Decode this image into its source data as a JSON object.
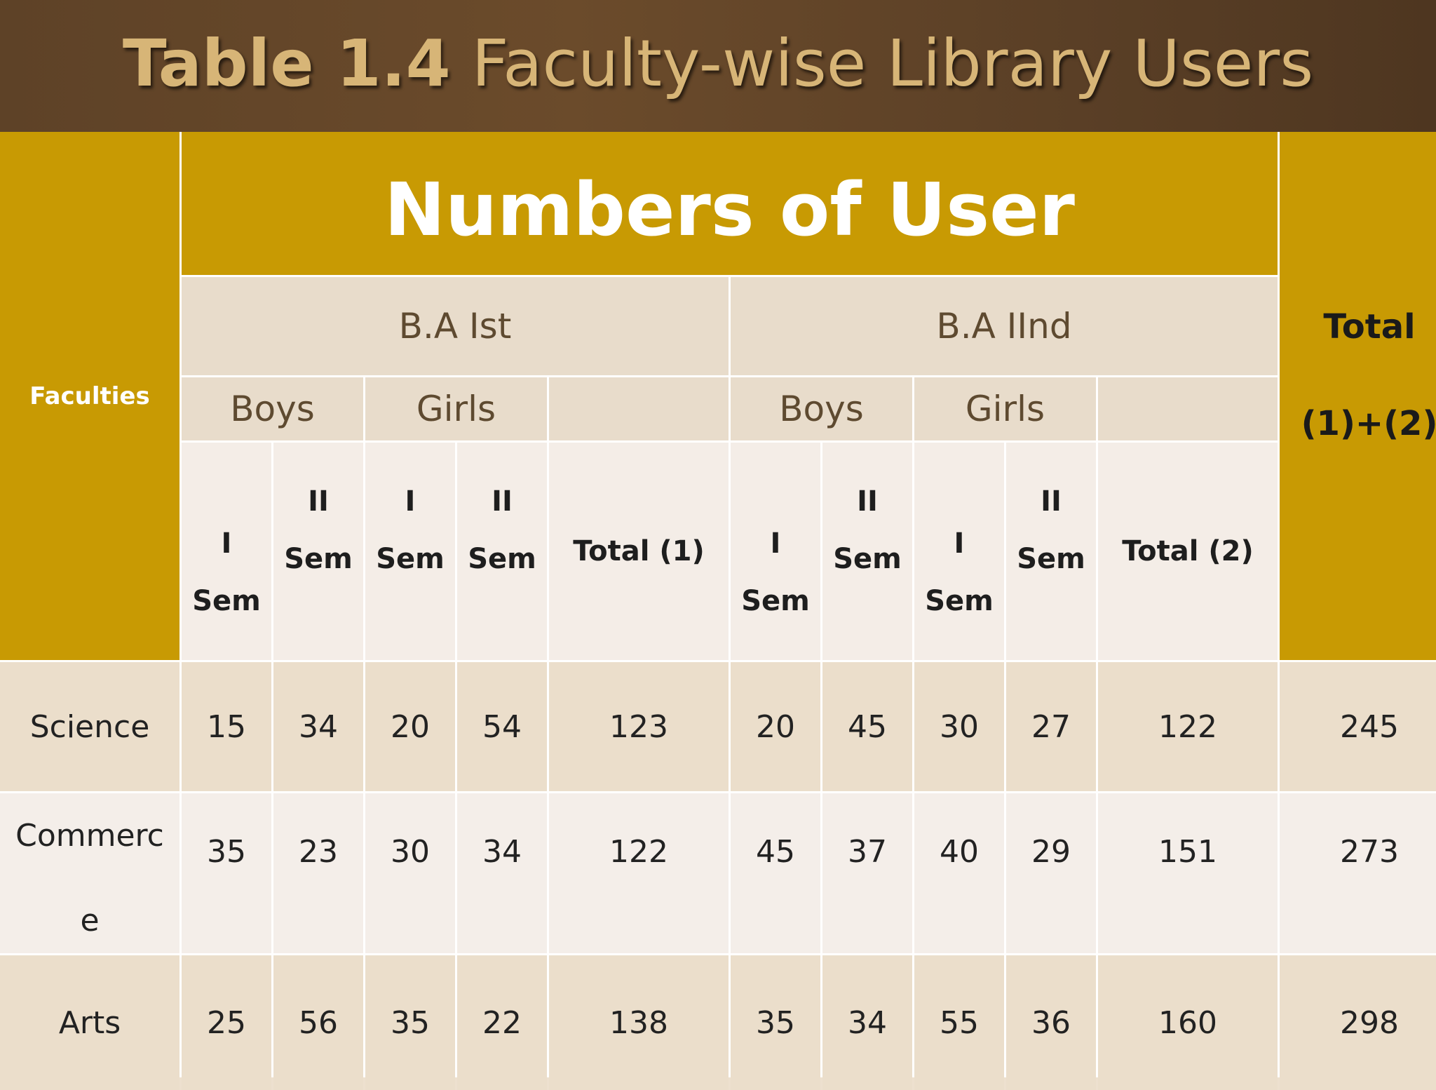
{
  "title": {
    "bold": "Table 1.4",
    "rest": "Faculty-wise Library Users"
  },
  "header": {
    "faculties": "Faculties",
    "numbers_of_user": "Numbers of User",
    "total_line1": "Total",
    "total_line2": "(1)+(2)",
    "ba1": "B.A Ist",
    "ba2": "B.A IInd",
    "boys": "Boys",
    "girls": "Girls",
    "sem_i": "I",
    "sem_ii": "II",
    "sem": "Sem",
    "total1": "Total (1)",
    "total2": "Total (2)"
  },
  "rows": [
    {
      "faculty": "Science",
      "faculty_line2": "",
      "values": [
        "15",
        "34",
        "20",
        "54",
        "123",
        "20",
        "45",
        "30",
        "27",
        "122",
        "245"
      ]
    },
    {
      "faculty": "Commerc",
      "faculty_line2": "e",
      "values": [
        "35",
        "23",
        "30",
        "34",
        "122",
        "45",
        "37",
        "40",
        "29",
        "151",
        "273"
      ]
    },
    {
      "faculty": "Arts",
      "faculty_line2": "",
      "values": [
        "25",
        "56",
        "35",
        "22",
        "138",
        "35",
        "34",
        "55",
        "36",
        "160",
        "298"
      ]
    }
  ],
  "colors": {
    "title_bg": "#5e4227",
    "title_text": "#d7b577",
    "gold": "#c89a03",
    "header_beige": "#e8dccb",
    "row_dark": "#ebdecb",
    "row_light": "#f4eee9"
  }
}
